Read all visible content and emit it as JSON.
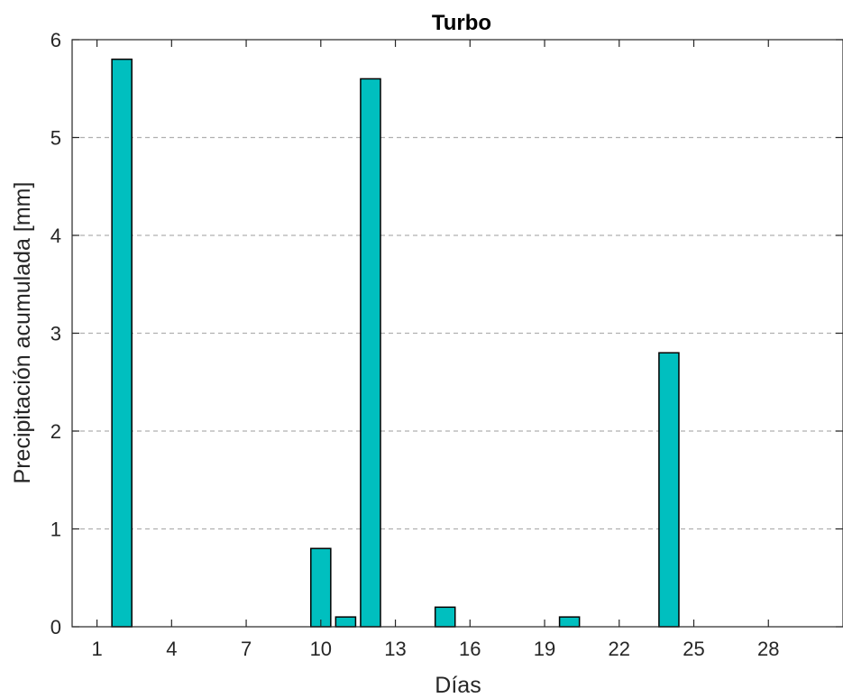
{
  "chart_data": {
    "type": "bar",
    "title": "Turbo",
    "xlabel": "Días",
    "ylabel": "Precipitación acumulada [mm]",
    "x": [
      1,
      2,
      3,
      4,
      5,
      6,
      7,
      8,
      9,
      10,
      11,
      12,
      13,
      14,
      15,
      16,
      17,
      18,
      19,
      20,
      21,
      22,
      23,
      24,
      25,
      26,
      27,
      28,
      29,
      30
    ],
    "values": [
      0,
      5.8,
      0,
      0,
      0,
      0,
      0,
      0,
      0,
      0.8,
      0.1,
      5.6,
      0,
      0,
      0.2,
      0,
      0,
      0,
      0,
      0.1,
      0,
      0,
      0,
      2.8,
      0,
      0,
      0,
      0,
      0,
      0
    ],
    "xticks": [
      "1",
      "4",
      "7",
      "10",
      "13",
      "16",
      "19",
      "22",
      "25",
      "28"
    ],
    "xtick_values": [
      1,
      4,
      7,
      10,
      13,
      16,
      19,
      22,
      25,
      28
    ],
    "yticks": [
      "0",
      "1",
      "2",
      "3",
      "4",
      "5",
      "6"
    ],
    "ytick_values": [
      0,
      1,
      2,
      3,
      4,
      5,
      6
    ],
    "xlim": [
      0,
      31
    ],
    "ylim": [
      0,
      6
    ],
    "grid": "y-dashed",
    "bar_color": "#00BFBF",
    "edge_color": "#000000"
  }
}
